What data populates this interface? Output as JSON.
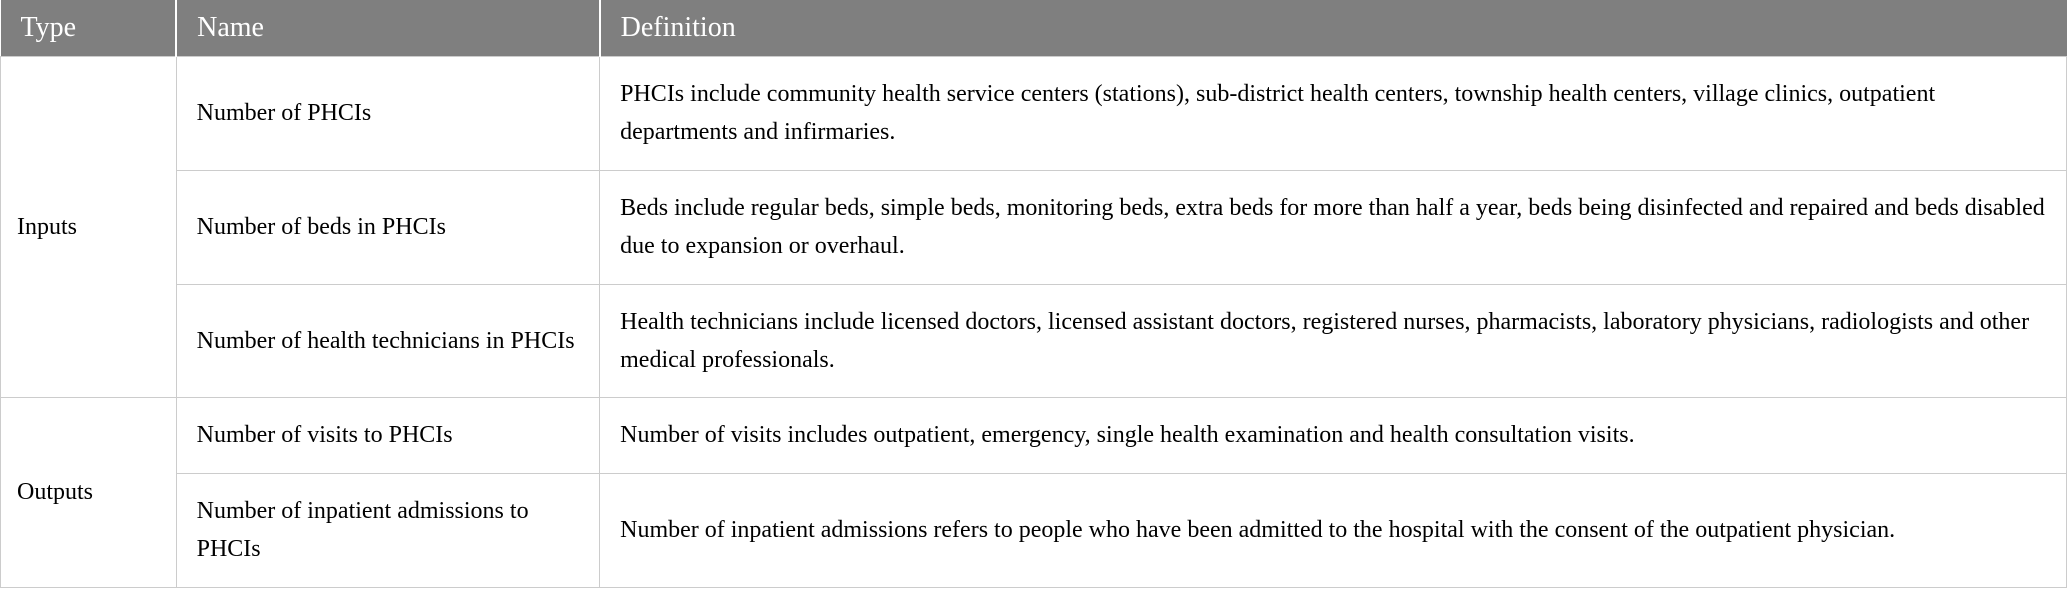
{
  "table": {
    "columns": [
      "Type",
      "Name",
      "Definition"
    ],
    "column_widths": [
      "8.5%",
      "20.5%",
      "71%"
    ],
    "header_bg_color": "#7f7f7f",
    "header_text_color": "#ffffff",
    "header_fontsize": 28,
    "cell_fontsize": 24,
    "border_color": "#cccccc",
    "background_color": "#ffffff",
    "groups": [
      {
        "type": "Inputs",
        "rows": [
          {
            "name": "Number of PHCIs",
            "definition": "PHCIs include community health service centers (stations), sub-district health centers, township health centers, village clinics, outpatient departments and infirmaries."
          },
          {
            "name": "Number of beds in PHCIs",
            "definition": "Beds include regular beds, simple beds, monitoring beds, extra beds for more than half a year, beds being disinfected and repaired and beds disabled due to expansion or overhaul."
          },
          {
            "name": "Number of health technicians in PHCIs",
            "definition": "Health technicians include licensed doctors, licensed assistant doctors, registered nurses, pharmacists, laboratory physicians, radiologists and other medical professionals."
          }
        ]
      },
      {
        "type": "Outputs",
        "rows": [
          {
            "name": "Number of visits to PHCIs",
            "definition": "Number of visits includes outpatient, emergency, single health examination and health consultation visits."
          },
          {
            "name": "Number of inpatient admissions to PHCIs",
            "definition": "Number of inpatient admissions refers to people who have been admitted to the hospital with the consent of the outpatient physician."
          }
        ]
      }
    ]
  }
}
